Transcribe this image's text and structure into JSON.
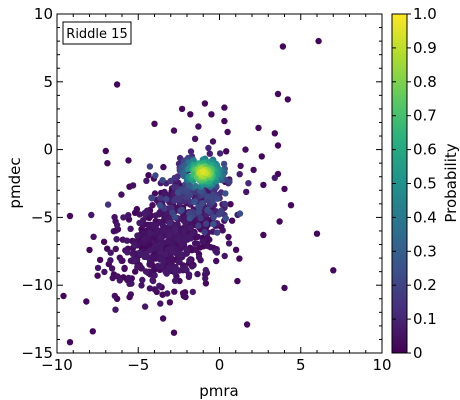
{
  "chart_data": {
    "type": "scatter",
    "title": "",
    "annotation": "Riddle 15",
    "xlabel": "pmra",
    "ylabel": "pmdec",
    "xlim": [
      -10,
      10
    ],
    "ylim": [
      -15,
      10
    ],
    "xticks": [
      -10,
      -5,
      0,
      5,
      10
    ],
    "yticks": [
      -15,
      -10,
      -5,
      0,
      5,
      10
    ],
    "grid": false,
    "colorbar": {
      "label": "Probability",
      "colormap": "viridis",
      "range": [
        0,
        1
      ],
      "ticks": [
        "0",
        "0.1",
        "0.2",
        "0.3",
        "0.4",
        "0.5",
        "0.6",
        "0.7",
        "0.8",
        "0.9",
        "1.0"
      ]
    },
    "cluster": {
      "center": [
        -1.0,
        -1.7
      ],
      "description": "high-probability concentration (yellow/green) near pmra -1, pmdec -1.7"
    },
    "points": [
      [
        6.1,
        8.0,
        0.02
      ],
      [
        3.9,
        7.6,
        0.02
      ],
      [
        -6.3,
        4.8,
        0.02
      ],
      [
        3.6,
        4.1,
        0.02
      ],
      [
        4.2,
        3.7,
        0.02
      ],
      [
        -0.9,
        3.4,
        0.02
      ],
      [
        0.3,
        3.1,
        0.02
      ],
      [
        -2.3,
        3.0,
        0.02
      ],
      [
        -1.8,
        2.6,
        0.02
      ],
      [
        -0.5,
        2.6,
        0.02
      ],
      [
        -4.0,
        1.9,
        0.02
      ],
      [
        0.3,
        2.1,
        0.02
      ],
      [
        0.5,
        1.3,
        0.03
      ],
      [
        -2.8,
        1.4,
        0.03
      ],
      [
        -1.3,
        1.7,
        0.04
      ],
      [
        -1.5,
        0.8,
        0.05
      ],
      [
        -0.4,
        0.6,
        0.04
      ],
      [
        2.4,
        1.6,
        0.02
      ],
      [
        3.4,
        1.2,
        0.02
      ],
      [
        3.6,
        0.3,
        0.02
      ],
      [
        -7.0,
        -0.1,
        0.02
      ],
      [
        -5.6,
        -0.8,
        0.02
      ],
      [
        -6.9,
        -1.0,
        0.02
      ],
      [
        -0.6,
        -0.3,
        0.08
      ],
      [
        -1.7,
        -0.5,
        0.12
      ],
      [
        1.6,
        0.0,
        0.03
      ],
      [
        2.6,
        -0.5,
        0.02
      ],
      [
        2.1,
        -1.5,
        0.03
      ],
      [
        3.6,
        -1.8,
        0.02
      ],
      [
        2.7,
        -2.6,
        0.02
      ],
      [
        4.0,
        -2.9,
        0.02
      ],
      [
        1.3,
        -1.2,
        0.04
      ],
      [
        0.6,
        -2.2,
        0.06
      ],
      [
        -9.2,
        -4.9,
        0.02
      ],
      [
        -8.0,
        -7.4,
        0.02
      ],
      [
        -7.5,
        -9.3,
        0.02
      ],
      [
        -6.3,
        -11.0,
        0.02
      ],
      [
        -7.8,
        -13.4,
        0.02
      ],
      [
        -9.6,
        -10.8,
        0.02
      ],
      [
        -9.2,
        -14.2,
        0.02
      ],
      [
        -2.8,
        -13.5,
        0.02
      ],
      [
        1.7,
        -12.9,
        0.02
      ],
      [
        4.0,
        -10.2,
        0.02
      ],
      [
        6.0,
        -6.2,
        0.02
      ],
      [
        7.0,
        -8.9,
        0.02
      ],
      [
        4.4,
        -4.1,
        0.02
      ],
      [
        3.7,
        -5.3,
        0.02
      ],
      [
        2.7,
        -6.3,
        0.02
      ],
      [
        1.1,
        -9.7,
        0.02
      ],
      [
        -2.2,
        -10.8,
        0.02
      ],
      [
        -3.5,
        -10.7,
        0.02
      ],
      [
        -5.4,
        -9.5,
        0.02
      ],
      [
        -6.5,
        -9.2,
        0.02
      ],
      [
        -8.2,
        -11.2,
        0.02
      ],
      [
        -7.1,
        -6.8,
        0.02
      ]
    ]
  }
}
